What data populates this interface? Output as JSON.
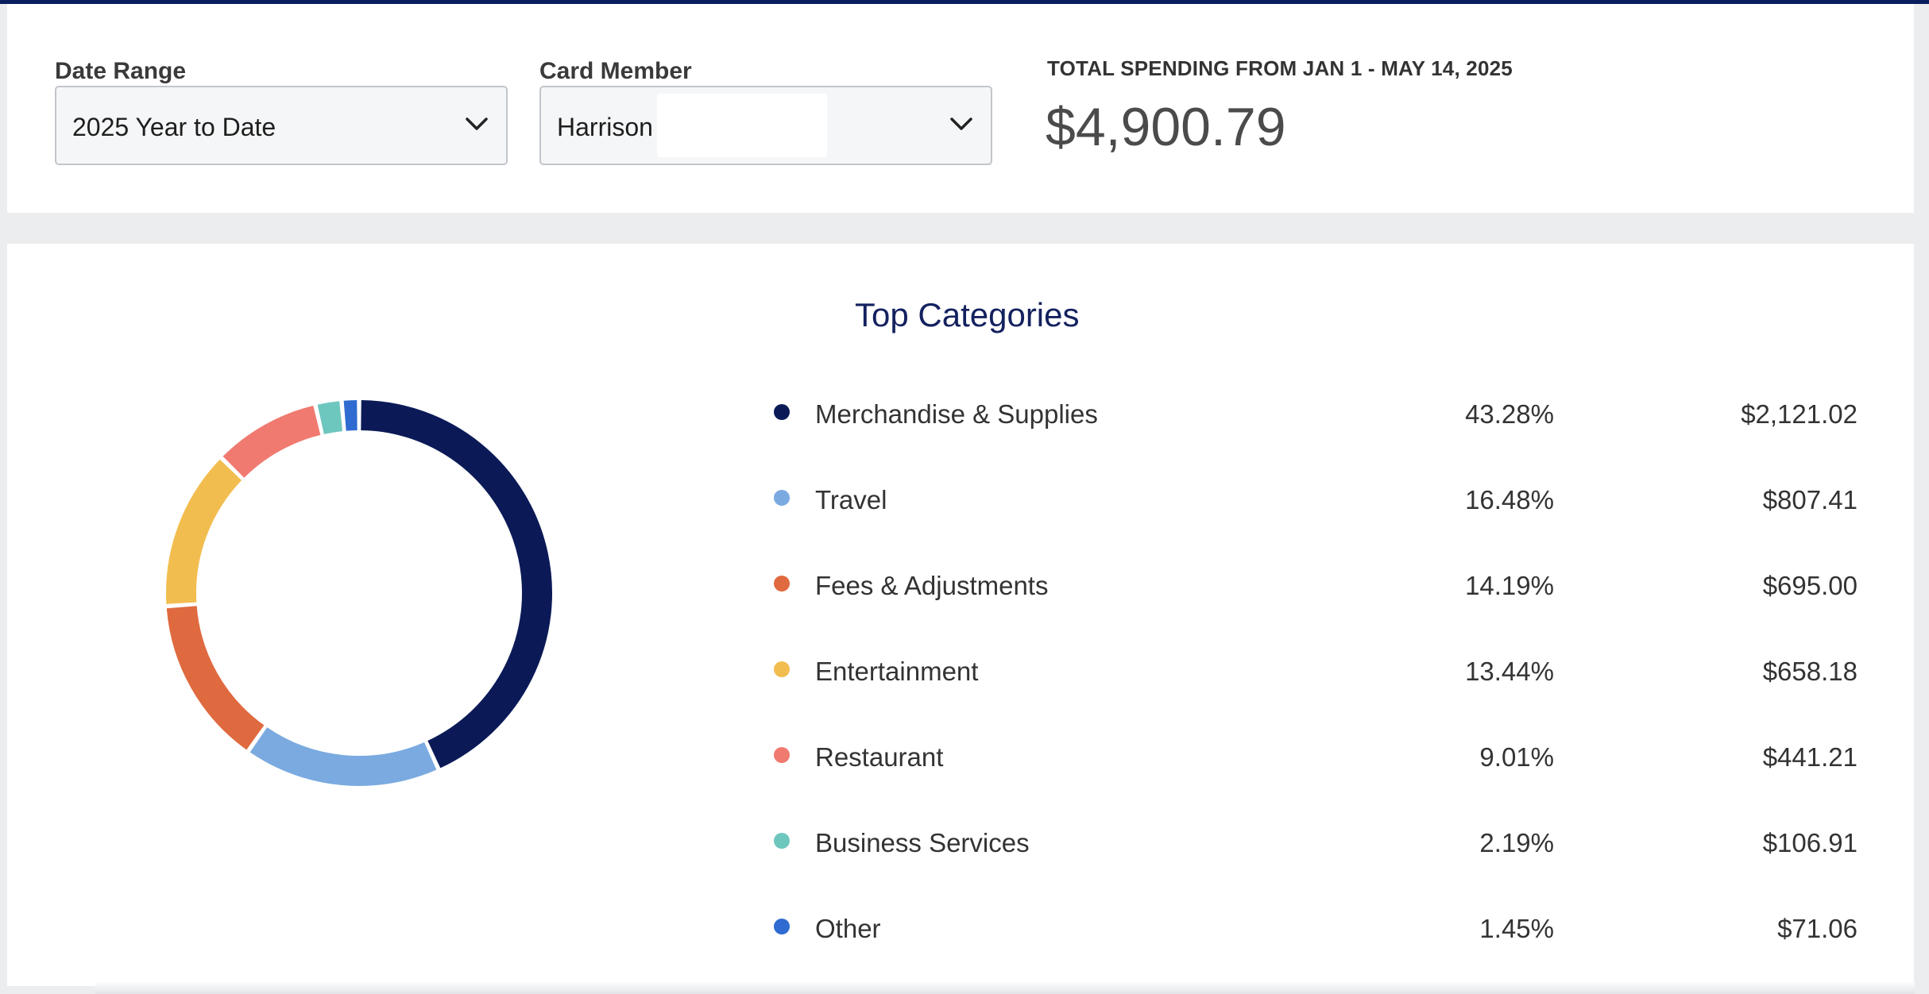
{
  "filters": {
    "date_range": {
      "label": "Date Range",
      "value": "2025 Year to Date"
    },
    "card_member": {
      "label": "Card Member",
      "value": "Harrison"
    }
  },
  "total": {
    "label": "TOTAL SPENDING FROM JAN 1 - MAY 14, 2025",
    "value": "$4,900.79"
  },
  "section_title": "Top Categories",
  "chart_data": {
    "type": "pie",
    "style": "donut",
    "categories": [
      "Merchandise & Supplies",
      "Travel",
      "Fees & Adjustments",
      "Entertainment",
      "Restaurant",
      "Business Services",
      "Other"
    ],
    "values": [
      43.28,
      16.48,
      14.19,
      13.44,
      9.01,
      2.19,
      1.45
    ],
    "amounts": [
      2121.02,
      807.41,
      695.0,
      658.18,
      441.21,
      106.91,
      71.06
    ],
    "colors": [
      "#0b1a57",
      "#7aaae0",
      "#df6a3f",
      "#f2bd4f",
      "#f07a70",
      "#6ec7be",
      "#2f6bd0"
    ]
  },
  "legend": [
    {
      "name": "Merchandise & Supplies",
      "pct": "43.28%",
      "amount": "$2,121.02",
      "color": "#0b1a57"
    },
    {
      "name": "Travel",
      "pct": "16.48%",
      "amount": "$807.41",
      "color": "#7aaae0"
    },
    {
      "name": "Fees & Adjustments",
      "pct": "14.19%",
      "amount": "$695.00",
      "color": "#df6a3f"
    },
    {
      "name": "Entertainment",
      "pct": "13.44%",
      "amount": "$658.18",
      "color": "#f2bd4f"
    },
    {
      "name": "Restaurant",
      "pct": "9.01%",
      "amount": "$441.21",
      "color": "#f07a70"
    },
    {
      "name": "Business Services",
      "pct": "2.19%",
      "amount": "$106.91",
      "color": "#6ec7be"
    },
    {
      "name": "Other",
      "pct": "1.45%",
      "amount": "$71.06",
      "color": "#2f6bd0"
    }
  ]
}
